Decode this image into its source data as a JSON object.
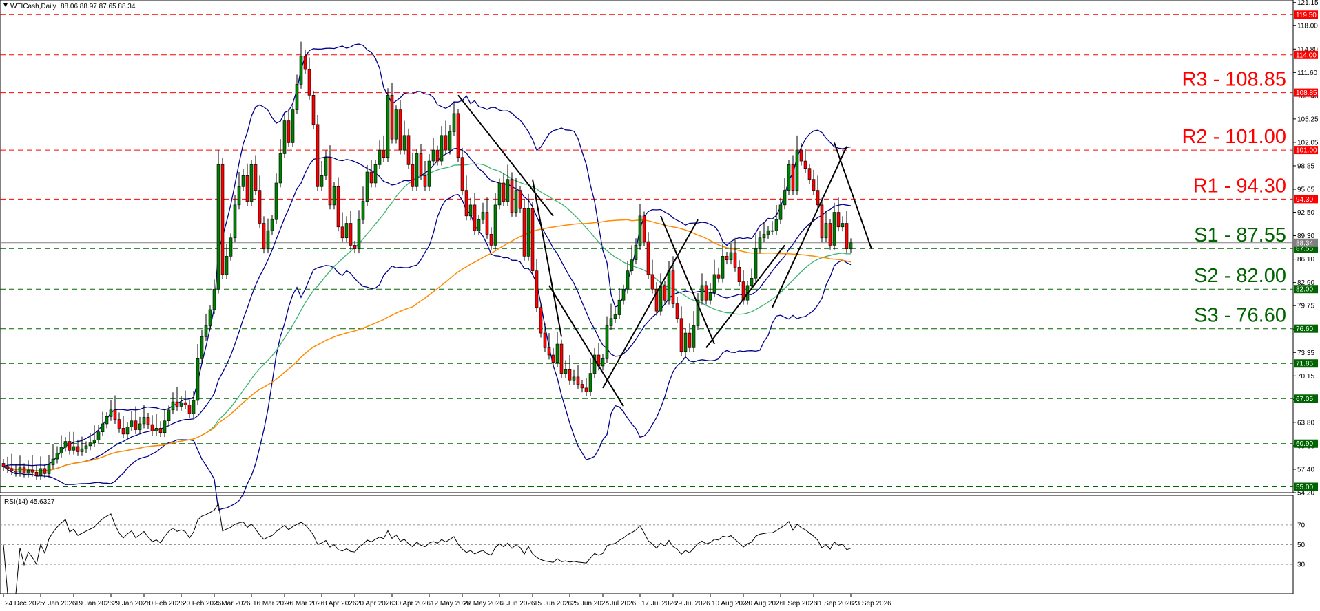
{
  "header": {
    "symbol": "WTICash,Daily",
    "ohlc": "88.06 88.97 87.65 88.34",
    "rsi_label": "RSI(14) 45.6327"
  },
  "chart_data": {
    "type": "candlestick",
    "symbol": "WTICash",
    "timeframe": "Daily",
    "ylim": [
      54.2,
      121.5
    ],
    "y_ticks": [
      121.15,
      118.0,
      114.8,
      111.6,
      108.4,
      105.25,
      102.05,
      98.85,
      95.65,
      92.5,
      89.3,
      86.1,
      82.9,
      79.75,
      76.55,
      73.35,
      70.15,
      66.95,
      63.8,
      60.6,
      57.4,
      54.2
    ],
    "x_ticks": [
      "24 Dec 2025",
      "7 Jan 2026",
      "19 Jan 2026",
      "29 Jan 2026",
      "10 Feb 2026",
      "20 Feb 2026",
      "4 Mar 2026",
      "16 Mar 2026",
      "26 Mar 2026",
      "8 Apr 2026",
      "20 Apr 2026",
      "30 Apr 2026",
      "12 May 2026",
      "22 May 2026",
      "3 Jun 2026",
      "15 Jun 2026",
      "25 Jun 2026",
      "7 Jul 2026",
      "17 Jul 2026",
      "29 Jul 2026",
      "10 Aug 2026",
      "20 Aug 2026",
      "1 Sep 2026",
      "11 Sep 2026",
      "23 Sep 2026"
    ],
    "current_price": 88.34,
    "current_price_label": "88.34",
    "levels": [
      {
        "value": 119.5,
        "label": "119.50",
        "color": "#ff0000",
        "text": ""
      },
      {
        "value": 114.0,
        "label": "114.00",
        "color": "#ff0000",
        "text": ""
      },
      {
        "value": 108.85,
        "label": "108.85",
        "color": "#ff0000",
        "text": "R3 - 108.85"
      },
      {
        "value": 101.0,
        "label": "101.00",
        "color": "#ff0000",
        "text": "R2 - 101.00"
      },
      {
        "value": 94.3,
        "label": "94.30",
        "color": "#ff0000",
        "text": "R1 - 94.30"
      },
      {
        "value": 87.55,
        "label": "87.55",
        "color": "#006400",
        "text": "S1 - 87.55"
      },
      {
        "value": 82.0,
        "label": "82.00",
        "color": "#006400",
        "text": "S2 - 82.00"
      },
      {
        "value": 76.6,
        "label": "76.60",
        "color": "#006400",
        "text": "S3 - 76.60"
      },
      {
        "value": 71.85,
        "label": "71.85",
        "color": "#006400",
        "text": ""
      },
      {
        "value": 67.05,
        "label": "67.05",
        "color": "#006400",
        "text": ""
      },
      {
        "value": 60.9,
        "label": "60.90",
        "color": "#006400",
        "text": ""
      },
      {
        "value": 55.0,
        "label": "55.00",
        "color": "#006400",
        "text": ""
      }
    ],
    "close_series": [
      57.8,
      57.5,
      57.2,
      57.0,
      57.6,
      56.9,
      57.3,
      57.0,
      56.5,
      57.5,
      56.8,
      58.0,
      58.8,
      59.6,
      60.4,
      61.2,
      60.0,
      60.5,
      59.8,
      60.2,
      60.6,
      61.0,
      61.4,
      62.5,
      63.6,
      64.6,
      65.5,
      64.2,
      63.0,
      62.2,
      63.2,
      64.0,
      62.8,
      63.6,
      64.5,
      63.5,
      62.6,
      63.0,
      62.4,
      64.0,
      65.5,
      66.6,
      66.0,
      66.5,
      66.2,
      65.0,
      66.8,
      72.5,
      75.5,
      77.0,
      79.2,
      82.0,
      99.0,
      84.0,
      86.5,
      89.0,
      93.5,
      96.0,
      97.5,
      94.0,
      99.0,
      95.5,
      91.0,
      87.5,
      90.0,
      91.5,
      96.5,
      100.5,
      105.0,
      102.0,
      106.5,
      110.0,
      113.8,
      112.0,
      108.5,
      104.5,
      96.0,
      97.5,
      100.0,
      93.5,
      96.0,
      90.5,
      89.0,
      91.0,
      88.0,
      87.5,
      91.5,
      94.0,
      98.0,
      96.5,
      99.0,
      101.0,
      100.0,
      108.5,
      102.5,
      106.5,
      101.0,
      103.0,
      99.0,
      96.0,
      100.5,
      97.5,
      96.0,
      99.5,
      101.0,
      99.5,
      103.0,
      101.0,
      103.5,
      106.0,
      100.0,
      95.5,
      92.0,
      93.5,
      90.0,
      91.5,
      92.5,
      89.5,
      88.0,
      93.5,
      96.5,
      94.0,
      97.0,
      92.5,
      95.5,
      93.0,
      86.5,
      93.0,
      84.5,
      79.5,
      76.0,
      74.0,
      73.0,
      72.0,
      74.5,
      70.5,
      71.0,
      69.5,
      70.0,
      69.0,
      68.5,
      68.0,
      70.5,
      73.0,
      71.5,
      72.5,
      77.0,
      78.0,
      78.5,
      80.5,
      82.0,
      84.5,
      86.0,
      88.0,
      92.0,
      88.5,
      84.0,
      82.0,
      79.0,
      82.5,
      80.5,
      84.5,
      80.0,
      78.0,
      73.5,
      76.0,
      74.0,
      77.0,
      80.5,
      82.5,
      80.5,
      81.5,
      84.0,
      83.5,
      86.5,
      86.0,
      87.0,
      85.0,
      83.0,
      80.5,
      82.5,
      83.5,
      87.5,
      89.0,
      89.5,
      90.0,
      90.0,
      91.5,
      93.5,
      95.5,
      99.0,
      95.5,
      101.0,
      99.5,
      98.5,
      97.0,
      95.5,
      93.5,
      89.0,
      91.0,
      88.0,
      92.5,
      90.5,
      91.0,
      87.5,
      88.34
    ]
  }
}
